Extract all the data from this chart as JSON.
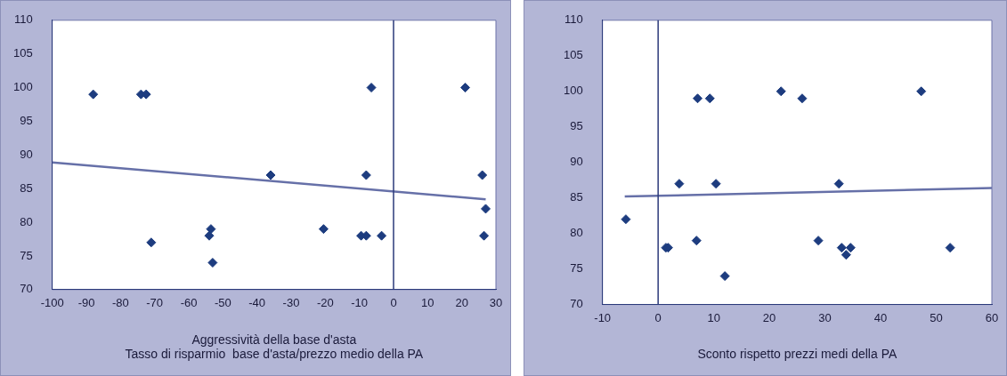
{
  "chart_data": [
    {
      "type": "scatter",
      "xlabel": "Aggressività della base d'asta\nTasso di risparmio  base d'asta/prezzo medio della PA",
      "xlim": [
        -100,
        30
      ],
      "xticks": [
        -100,
        -90,
        -80,
        -70,
        -60,
        -50,
        -40,
        -30,
        -20,
        -10,
        0,
        10,
        20,
        30
      ],
      "ylim": [
        70,
        110
      ],
      "yticks": [
        70,
        75,
        80,
        85,
        90,
        95,
        100,
        105,
        110
      ],
      "grid": false,
      "legend": false,
      "marker": "diamond",
      "ref_lines": [
        {
          "axis": "x",
          "value": 0,
          "color": "#2b3a7a"
        }
      ],
      "series": [
        {
          "color": "#1d3c7f",
          "x": [
            -88,
            -74,
            -72.5,
            -71,
            -54,
            -53.5,
            -53,
            -36,
            -20.5,
            -9.5,
            -8,
            -8,
            -6.5,
            -3.5,
            21,
            26,
            26.5,
            27
          ],
          "values": [
            99,
            99,
            99,
            77,
            78,
            79,
            74,
            87,
            79,
            78,
            78,
            87,
            100,
            78,
            100,
            87,
            78,
            82
          ]
        },
        {
          "type": "line",
          "color": "#6670a8",
          "marker": "none",
          "x": [
            -100,
            27
          ],
          "values": [
            88.9,
            83.4
          ]
        }
      ]
    },
    {
      "type": "scatter",
      "xlabel": "Sconto rispetto prezzi medi della PA",
      "xlim": [
        -10,
        60
      ],
      "xticks": [
        -10,
        0,
        10,
        20,
        30,
        40,
        50,
        60
      ],
      "ylim": [
        70,
        110
      ],
      "yticks": [
        70,
        75,
        80,
        85,
        90,
        95,
        100,
        105,
        110
      ],
      "grid": false,
      "legend": false,
      "marker": "diamond",
      "ref_lines": [
        {
          "axis": "x",
          "value": 0,
          "color": "#2b3a7a"
        }
      ],
      "series": [
        {
          "color": "#1d3c7f",
          "x": [
            -5.8,
            1.4,
            1.8,
            3.8,
            6.9,
            7.1,
            9.3,
            10.4,
            12,
            22.1,
            25.9,
            28.8,
            32.5,
            33,
            33.8,
            34.6,
            47.3,
            52.5
          ],
          "values": [
            82,
            78,
            78,
            87,
            79,
            99,
            99,
            87,
            74,
            100,
            99,
            79,
            87,
            78,
            77,
            78,
            100,
            78
          ]
        },
        {
          "type": "line",
          "color": "#6670a8",
          "marker": "none",
          "x": [
            -6,
            60
          ],
          "values": [
            85.2,
            86.4
          ]
        }
      ]
    }
  ]
}
